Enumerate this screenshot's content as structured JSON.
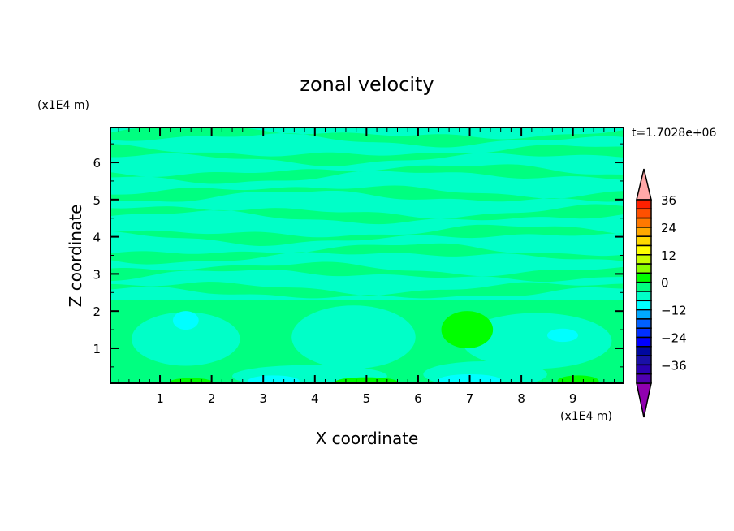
{
  "chart_data": {
    "type": "heatmap",
    "subtype": "filled-contour",
    "title": "zonal velocity",
    "xlabel": "X coordinate",
    "ylabel": "Z coordinate",
    "x_unit": "(x1E4 m)",
    "y_unit": "(x1E4 m)",
    "time_label": "t=1.7028e+06",
    "xlim": [
      0.04,
      9.98
    ],
    "ylim": [
      0.06,
      6.94
    ],
    "xticks": [
      1,
      2,
      3,
      4,
      5,
      6,
      7,
      8,
      9
    ],
    "yticks": [
      1,
      2,
      3,
      4,
      5,
      6
    ],
    "colorbar": {
      "levels": [
        -40,
        -36,
        -32,
        -28,
        -24,
        -20,
        -16,
        -12,
        -8,
        -4,
        0,
        4,
        8,
        12,
        16,
        20,
        24,
        28,
        32,
        36,
        40
      ],
      "tick_labels": [
        "36",
        "24",
        "12",
        "0",
        "-12",
        "-24",
        "-36"
      ],
      "tick_values": [
        36,
        24,
        12,
        0,
        -12,
        -24,
        -36
      ],
      "colors": [
        "#6600a8",
        "#5000b0",
        "#2a00b0",
        "#1a10a8",
        "#0008a0",
        "#0000ff",
        "#0030ff",
        "#0060ff",
        "#00a8ff",
        "#00ffff",
        "#00ffc8",
        "#00ff80",
        "#00ff00",
        "#88ff00",
        "#c8ff00",
        "#ffff00",
        "#ffd800",
        "#ffa800",
        "#ff7800",
        "#ff5000",
        "#ff2000",
        "#ff2828"
      ],
      "over_color": "#ffa8a8",
      "under_color": "#9000b0",
      "extend": "both"
    },
    "background_level": [
      -4,
      0
    ],
    "bands_0_to_4_z": [
      6.7,
      6.2,
      5.7,
      5.15,
      4.6,
      4.05,
      3.55,
      3.05,
      2.55
    ],
    "regions": [
      {
        "range": [
          0,
          4
        ],
        "x": [
          0.04,
          9.98
        ],
        "z": [
          0.06,
          2.3
        ]
      },
      {
        "range": [
          -4,
          0
        ],
        "cx": 1.5,
        "cz": 1.25,
        "rx": 1.05,
        "rz": 0.72
      },
      {
        "range": [
          -4,
          0
        ],
        "cx": 4.75,
        "cz": 1.3,
        "rx": 1.2,
        "rz": 0.85
      },
      {
        "range": [
          -4,
          0
        ],
        "cx": 8.3,
        "cz": 1.2,
        "rx": 1.45,
        "rz": 0.75
      },
      {
        "range": [
          -4,
          0
        ],
        "cx": 3.9,
        "cz": 0.25,
        "rx": 1.5,
        "rz": 0.3
      },
      {
        "range": [
          -4,
          0
        ],
        "cx": 7.3,
        "cz": 0.3,
        "rx": 1.2,
        "rz": 0.35
      },
      {
        "range": [
          -8,
          -4
        ],
        "cx": 1.5,
        "cz": 1.75,
        "rx": 0.25,
        "rz": 0.25
      },
      {
        "range": [
          -8,
          -4
        ],
        "cx": 8.8,
        "cz": 1.35,
        "rx": 0.3,
        "rz": 0.18
      },
      {
        "range": [
          -8,
          -4
        ],
        "cx": 3.2,
        "cz": 0.12,
        "rx": 0.5,
        "rz": 0.15
      },
      {
        "range": [
          -8,
          -4
        ],
        "cx": 7.0,
        "cz": 0.15,
        "rx": 0.6,
        "rz": 0.15
      },
      {
        "range": [
          4,
          8
        ],
        "cx": 6.95,
        "cz": 1.5,
        "rx": 0.5,
        "rz": 0.5
      },
      {
        "range": [
          4,
          8
        ],
        "cx": 1.6,
        "cz": 0.1,
        "rx": 0.4,
        "rz": 0.1
      },
      {
        "range": [
          4,
          8
        ],
        "cx": 5.0,
        "cz": 0.1,
        "rx": 0.6,
        "rz": 0.12
      },
      {
        "range": [
          4,
          8
        ],
        "cx": 9.1,
        "cz": 0.12,
        "rx": 0.4,
        "rz": 0.15
      }
    ]
  }
}
